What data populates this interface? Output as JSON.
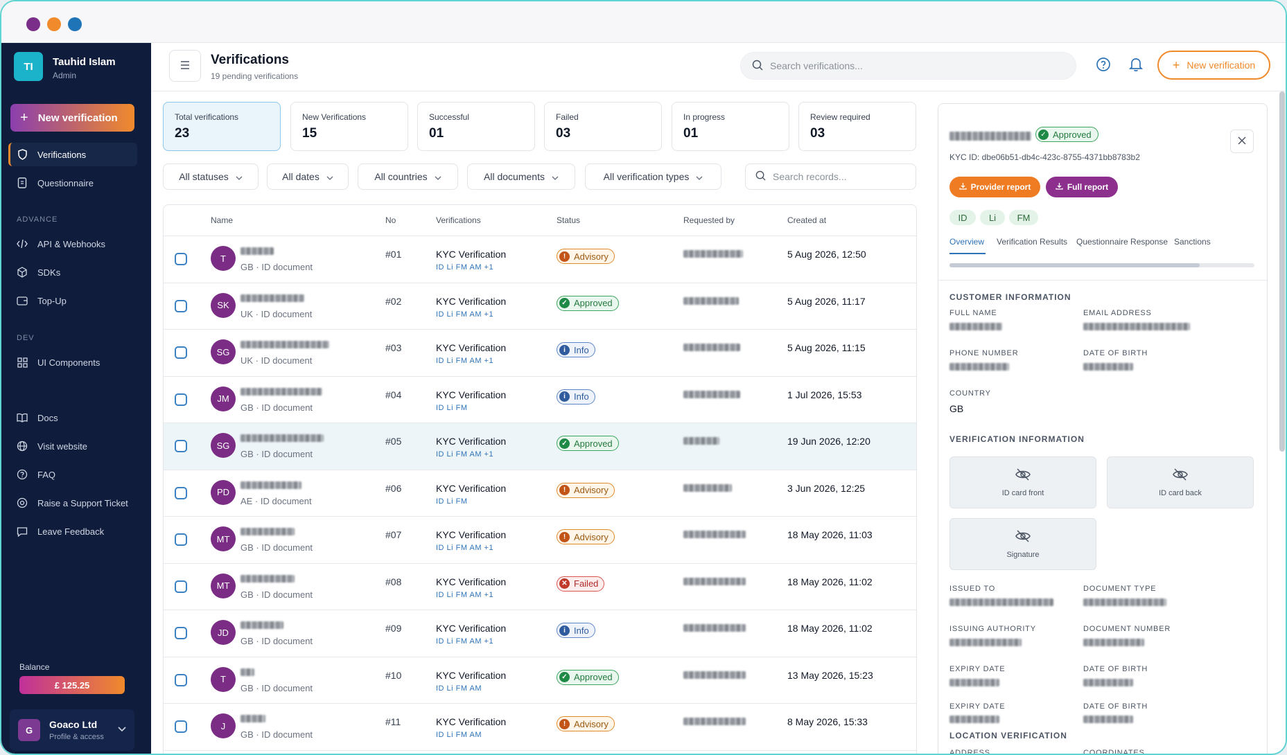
{
  "user": {
    "initials": "TI",
    "name": "Tauhid Islam",
    "role": "Admin"
  },
  "sidebar": {
    "new_verification": "New verification",
    "items": [
      {
        "label": "Verifications"
      },
      {
        "label": "Questionnaire"
      },
      {
        "label": "API & Webhooks"
      },
      {
        "label": "SDKs"
      },
      {
        "label": "Top-Up"
      },
      {
        "label": "UI Components"
      },
      {
        "label": "Docs"
      },
      {
        "label": "Visit website"
      },
      {
        "label": "FAQ"
      },
      {
        "label": "Raise a Support Ticket"
      },
      {
        "label": "Leave Feedback"
      }
    ],
    "sections": {
      "advance": "ADVANCE",
      "dev": "DEV"
    },
    "balance_label": "Balance",
    "balance_value": "£ 125.25",
    "org": {
      "initial": "G",
      "name": "Goaco Ltd",
      "sub": "Profile & access"
    }
  },
  "header": {
    "title": "Verifications",
    "subtitle": "19 pending verifications",
    "search_placeholder": "Search verifications...",
    "new_verification": "New verification"
  },
  "stats": [
    {
      "label": "Total verifications",
      "value": "23"
    },
    {
      "label": "New Verifications",
      "value": "15"
    },
    {
      "label": "Successful",
      "value": "01"
    },
    {
      "label": "Failed",
      "value": "03"
    },
    {
      "label": "In progress",
      "value": "01"
    },
    {
      "label": "Review required",
      "value": "03"
    }
  ],
  "filters": [
    "All statuses",
    "All dates",
    "All countries",
    "All documents",
    "All verification types"
  ],
  "records_search_placeholder": "Search records...",
  "table": {
    "columns": [
      "Name",
      "No",
      "Verifications",
      "Status",
      "Requested by",
      "Created at"
    ],
    "rows": [
      {
        "initials": "T",
        "country": "GB · ID document",
        "no": "#01",
        "verification": "KYC Verification",
        "tags": "ID Li FM AM +1",
        "status": "Advisory",
        "created": "5 Aug 2026, 12:50"
      },
      {
        "initials": "SK",
        "country": "UK · ID document",
        "no": "#02",
        "verification": "KYC Verification",
        "tags": "ID Li FM AM +1",
        "status": "Approved",
        "created": "5 Aug 2026, 11:17"
      },
      {
        "initials": "SG",
        "country": "UK · ID document",
        "no": "#03",
        "verification": "KYC Verification",
        "tags": "ID Li FM AM +1",
        "status": "Info",
        "created": "5 Aug 2026, 11:15"
      },
      {
        "initials": "JM",
        "country": "GB · ID document",
        "no": "#04",
        "verification": "KYC Verification",
        "tags": "ID Li FM",
        "status": "Info",
        "created": "1 Jul 2026, 15:53"
      },
      {
        "initials": "SG",
        "country": "GB · ID document",
        "no": "#05",
        "verification": "KYC Verification",
        "tags": "ID Li FM AM +1",
        "status": "Approved",
        "created": "19 Jun 2026, 12:20"
      },
      {
        "initials": "PD",
        "country": "AE · ID document",
        "no": "#06",
        "verification": "KYC Verification",
        "tags": "ID Li FM",
        "status": "Advisory",
        "created": "3 Jun 2026, 12:25"
      },
      {
        "initials": "MT",
        "country": "GB · ID document",
        "no": "#07",
        "verification": "KYC Verification",
        "tags": "ID Li FM AM +1",
        "status": "Advisory",
        "created": "18 May 2026, 11:03"
      },
      {
        "initials": "MT",
        "country": "GB · ID document",
        "no": "#08",
        "verification": "KYC Verification",
        "tags": "ID Li FM AM +1",
        "status": "Failed",
        "created": "18 May 2026, 11:02"
      },
      {
        "initials": "JD",
        "country": "GB · ID document",
        "no": "#09",
        "verification": "KYC Verification",
        "tags": "ID Li FM AM +1",
        "status": "Info",
        "created": "18 May 2026, 11:02"
      },
      {
        "initials": "T",
        "country": "GB · ID document",
        "no": "#10",
        "verification": "KYC Verification",
        "tags": "ID Li FM AM",
        "status": "Approved",
        "created": "13 May 2026, 15:23"
      },
      {
        "initials": "J",
        "country": "GB · ID document",
        "no": "#11",
        "verification": "KYC Verification",
        "tags": "ID Li FM AM",
        "status": "Advisory",
        "created": "8 May 2026, 15:33"
      }
    ]
  },
  "panel": {
    "status": "Approved",
    "kyc_id": "KYC ID: dbe06b51-db4c-423c-8755-4371bb8783b2",
    "provider_report": "Provider report",
    "full_report": "Full report",
    "pills": [
      "ID",
      "Li",
      "FM"
    ],
    "tabs": [
      "Overview",
      "Verification Results",
      "Questionnaire Response",
      "Sanctions"
    ],
    "progress": 0.82,
    "customer_info": {
      "title": "CUSTOMER INFORMATION",
      "full_name": "FULL NAME",
      "email": "EMAIL ADDRESS",
      "phone": "PHONE NUMBER",
      "dob": "DATE OF BIRTH",
      "country_label": "COUNTRY",
      "country_value": "GB"
    },
    "verification_info": {
      "title": "VERIFICATION INFORMATION",
      "docs": [
        "ID card front",
        "ID card back",
        "Signature"
      ],
      "issued_to": "ISSUED TO",
      "document_type": "DOCUMENT TYPE",
      "issuing_authority": "ISSUING AUTHORITY",
      "document_number": "DOCUMENT NUMBER",
      "expiry_date": "EXPIRY DATE",
      "date_of_birth": "DATE OF BIRTH"
    },
    "location": {
      "title": "LOCATION VERIFICATION",
      "address": "ADDRESS",
      "coordinates": "COORDINATES"
    }
  },
  "colors": {
    "accent": "#f08a2b",
    "sidebar": "#101c3b",
    "link": "#2e73b8",
    "purple": "#8c2f8d"
  }
}
